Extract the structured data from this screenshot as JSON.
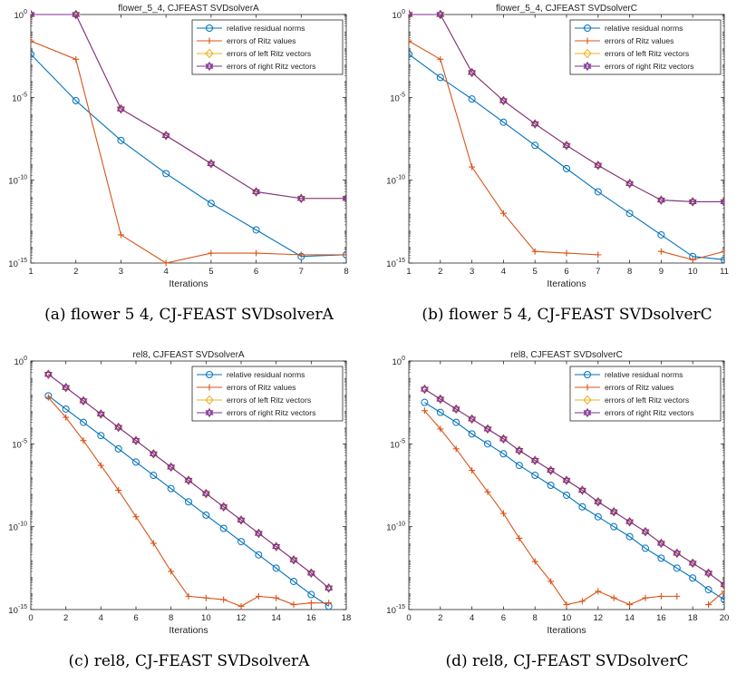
{
  "colors": {
    "residual": "#0072BD",
    "ritz_values": "#D95319",
    "left_vectors": "#EDB120",
    "right_vectors": "#7E2F8E"
  },
  "legend_labels": [
    "relative residual norms",
    "errors of Ritz values",
    "errors of left Ritz vectors",
    "errors of right Ritz vectors"
  ],
  "chart_data": [
    {
      "type": "line",
      "title": "flower_5_4, CJFEAST SVDsolverA",
      "caption": "(a) flower 5 4, CJ-FEAST SVDsolverA",
      "xlabel": "Iterations",
      "ylabel": "",
      "xlim": [
        1,
        8
      ],
      "xticks": [
        1,
        2,
        3,
        4,
        5,
        6,
        7,
        8
      ],
      "ylim_log10": [
        -15,
        0
      ],
      "ytick_exponents": [
        0,
        -5,
        -10,
        -15
      ],
      "yscale": "log",
      "legend": "top-right",
      "grid": false,
      "series": [
        {
          "name": "relative residual norms",
          "x": [
            1,
            2,
            3,
            4,
            5,
            6,
            7,
            8
          ],
          "log10_y": [
            -2.4,
            -5.2,
            -7.6,
            -9.6,
            -11.4,
            -13.0,
            -14.6,
            -14.5
          ]
        },
        {
          "name": "errors of Ritz values",
          "x": [
            1,
            2,
            3,
            4,
            5,
            6,
            7,
            8
          ],
          "log10_y": [
            -1.6,
            -2.7,
            -13.3,
            -15.0,
            -14.4,
            -14.4,
            -14.5,
            -14.5
          ]
        },
        {
          "name": "errors of left Ritz vectors",
          "x": [
            1,
            2,
            3,
            4,
            5,
            6,
            7,
            8
          ],
          "log10_y": [
            0,
            0,
            -5.7,
            -7.3,
            -9.0,
            -10.7,
            -11.1,
            -11.1
          ]
        },
        {
          "name": "errors of right Ritz vectors",
          "x": [
            1,
            2,
            3,
            4,
            5,
            6,
            7,
            8
          ],
          "log10_y": [
            0,
            0,
            -5.7,
            -7.3,
            -9.0,
            -10.7,
            -11.1,
            -11.1
          ]
        }
      ]
    },
    {
      "type": "line",
      "title": "flower_5_4, CJFEAST SVDsolverC",
      "caption": "(b) flower 5 4, CJ-FEAST SVDsolverC",
      "xlabel": "Iterations",
      "ylabel": "",
      "xlim": [
        1,
        11
      ],
      "xticks": [
        1,
        2,
        3,
        4,
        5,
        6,
        7,
        8,
        9,
        10,
        11
      ],
      "ylim_log10": [
        -15,
        0
      ],
      "ytick_exponents": [
        0,
        -5,
        -10,
        -15
      ],
      "yscale": "log",
      "legend": "top-right",
      "grid": false,
      "series": [
        {
          "name": "relative residual norms",
          "x": [
            1,
            2,
            3,
            4,
            5,
            6,
            7,
            8,
            9,
            10,
            11
          ],
          "log10_y": [
            -2.4,
            -3.8,
            -5.1,
            -6.5,
            -7.9,
            -9.3,
            -10.7,
            -12.0,
            -13.3,
            -14.6,
            -14.8
          ]
        },
        {
          "name": "errors of Ritz values",
          "x": [
            1,
            2,
            3,
            4,
            5,
            6,
            7,
            9,
            10,
            11
          ],
          "log10_y": [
            -1.6,
            -2.7,
            -9.2,
            -12.0,
            -14.3,
            -14.4,
            -14.5,
            -14.3,
            -14.8,
            -14.3
          ]
        },
        {
          "name": "errors of left Ritz vectors",
          "x": [
            1,
            2,
            3,
            4,
            5,
            6,
            7,
            8,
            9,
            10,
            11
          ],
          "log10_y": [
            0,
            0,
            -3.5,
            -5.2,
            -6.6,
            -7.9,
            -9.1,
            -10.2,
            -11.2,
            -11.3,
            -11.3
          ]
        },
        {
          "name": "errors of right Ritz vectors",
          "x": [
            1,
            2,
            3,
            4,
            5,
            6,
            7,
            8,
            9,
            10,
            11
          ],
          "log10_y": [
            0,
            0,
            -3.5,
            -5.2,
            -6.6,
            -7.9,
            -9.1,
            -10.2,
            -11.2,
            -11.3,
            -11.3
          ]
        }
      ]
    },
    {
      "type": "line",
      "title": "rel8, CJFEAST SVDsolverA",
      "caption": "(c) rel8, CJ-FEAST SVDsolverA",
      "xlabel": "Iterations",
      "ylabel": "",
      "xlim": [
        0,
        18
      ],
      "xticks": [
        0,
        2,
        4,
        6,
        8,
        10,
        12,
        14,
        16,
        18
      ],
      "ylim_log10": [
        -15,
        0
      ],
      "ytick_exponents": [
        0,
        -5,
        -10,
        -15
      ],
      "yscale": "log",
      "legend": "top-right",
      "grid": false,
      "series": [
        {
          "name": "relative residual norms",
          "x": [
            1,
            2,
            3,
            4,
            5,
            6,
            7,
            8,
            9,
            10,
            11,
            12,
            13,
            14,
            15,
            16,
            17
          ],
          "log10_y": [
            -2.1,
            -2.9,
            -3.7,
            -4.5,
            -5.3,
            -6.1,
            -6.9,
            -7.7,
            -8.5,
            -9.3,
            -10.1,
            -10.9,
            -11.7,
            -12.5,
            -13.3,
            -14.1,
            -14.8
          ]
        },
        {
          "name": "errors of Ritz values",
          "x": [
            1,
            2,
            3,
            4,
            5,
            6,
            7,
            8,
            9,
            10,
            11,
            12,
            13,
            14,
            15,
            16,
            17
          ],
          "log10_y": [
            -2.2,
            -3.4,
            -4.8,
            -6.3,
            -7.8,
            -9.4,
            -11.0,
            -12.7,
            -14.2,
            -14.3,
            -14.4,
            -14.8,
            -14.2,
            -14.3,
            -14.7,
            -14.6,
            -14.6
          ]
        },
        {
          "name": "errors of left Ritz vectors",
          "x": [
            1,
            2,
            3,
            4,
            5,
            6,
            7,
            8,
            9,
            10,
            11,
            12,
            13,
            14,
            15,
            16,
            17
          ],
          "log10_y": [
            -0.8,
            -1.6,
            -2.4,
            -3.2,
            -4.0,
            -4.8,
            -5.6,
            -6.4,
            -7.2,
            -8.0,
            -8.8,
            -9.6,
            -10.4,
            -11.2,
            -12.0,
            -12.8,
            -13.7
          ]
        },
        {
          "name": "errors of right Ritz vectors",
          "x": [
            1,
            2,
            3,
            4,
            5,
            6,
            7,
            8,
            9,
            10,
            11,
            12,
            13,
            14,
            15,
            16,
            17
          ],
          "log10_y": [
            -0.8,
            -1.6,
            -2.4,
            -3.2,
            -4.0,
            -4.8,
            -5.6,
            -6.4,
            -7.2,
            -8.0,
            -8.8,
            -9.6,
            -10.4,
            -11.2,
            -12.0,
            -12.8,
            -13.7
          ]
        }
      ]
    },
    {
      "type": "line",
      "title": "rel8, CJFEAST SVDsolverC",
      "caption": "(d) rel8, CJ-FEAST SVDsolverC",
      "xlabel": "Iterations",
      "ylabel": "",
      "xlim": [
        0,
        20
      ],
      "xticks": [
        0,
        2,
        4,
        6,
        8,
        10,
        12,
        14,
        16,
        18,
        20
      ],
      "ylim_log10": [
        -15,
        0
      ],
      "ytick_exponents": [
        0,
        -5,
        -10,
        -15
      ],
      "yscale": "log",
      "legend": "top-right",
      "grid": false,
      "series": [
        {
          "name": "relative residual norms",
          "x": [
            1,
            2,
            3,
            4,
            5,
            6,
            7,
            8,
            9,
            10,
            11,
            12,
            13,
            14,
            15,
            16,
            17,
            18,
            19,
            20
          ],
          "log10_y": [
            -2.5,
            -3.1,
            -3.7,
            -4.4,
            -5.0,
            -5.6,
            -6.3,
            -6.9,
            -7.5,
            -8.1,
            -8.8,
            -9.4,
            -10.0,
            -10.6,
            -11.3,
            -11.9,
            -12.5,
            -13.1,
            -13.8,
            -14.4
          ]
        },
        {
          "name": "errors of Ritz values",
          "x": [
            1,
            2,
            3,
            4,
            5,
            6,
            7,
            8,
            9,
            10,
            11,
            12,
            13,
            14,
            15,
            16,
            17,
            19,
            20
          ],
          "log10_y": [
            -3.0,
            -4.1,
            -5.3,
            -6.6,
            -7.9,
            -9.2,
            -10.7,
            -12.1,
            -13.3,
            -14.7,
            -14.5,
            -13.9,
            -14.3,
            -14.7,
            -14.3,
            -14.2,
            -14.2,
            -14.7,
            -13.9
          ]
        },
        {
          "name": "errors of left Ritz vectors",
          "x": [
            1,
            2,
            3,
            4,
            5,
            6,
            7,
            8,
            9,
            10,
            11,
            12,
            13,
            14,
            15,
            16,
            17,
            18,
            19,
            20
          ],
          "log10_y": [
            -1.7,
            -2.3,
            -2.9,
            -3.5,
            -4.1,
            -4.7,
            -5.4,
            -6.0,
            -6.6,
            -7.2,
            -7.8,
            -8.5,
            -9.1,
            -9.7,
            -10.3,
            -11.0,
            -11.6,
            -12.2,
            -12.8,
            -13.5
          ]
        },
        {
          "name": "errors of right Ritz vectors",
          "x": [
            1,
            2,
            3,
            4,
            5,
            6,
            7,
            8,
            9,
            10,
            11,
            12,
            13,
            14,
            15,
            16,
            17,
            18,
            19,
            20
          ],
          "log10_y": [
            -1.7,
            -2.3,
            -2.9,
            -3.5,
            -4.1,
            -4.7,
            -5.4,
            -6.0,
            -6.6,
            -7.2,
            -7.8,
            -8.5,
            -9.1,
            -9.7,
            -10.3,
            -11.0,
            -11.6,
            -12.2,
            -12.8,
            -13.5
          ]
        }
      ]
    }
  ]
}
